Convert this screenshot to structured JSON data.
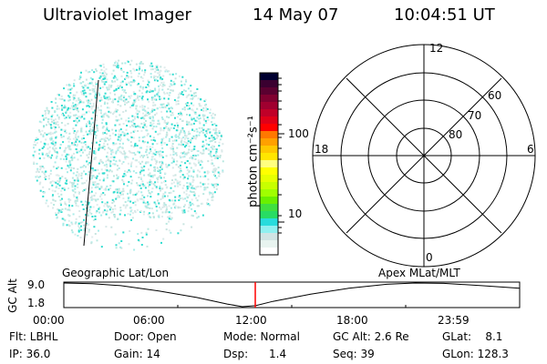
{
  "header": {
    "instrument": "Ultraviolet Imager",
    "date": "14 May 07",
    "time": "10:04:51 UT"
  },
  "colorbar": {
    "label": "photon cm⁻²s⁻¹",
    "ticks": [
      "100",
      "10"
    ],
    "colors": [
      "#000030",
      "#3a0030",
      "#5a0030",
      "#800030",
      "#a00030",
      "#c00028",
      "#e00018",
      "#ff0000",
      "#ff7800",
      "#ffa000",
      "#ffc800",
      "#ffe600",
      "#ffff80",
      "#ffff00",
      "#e6ff00",
      "#c8ff00",
      "#a0ff00",
      "#6af000",
      "#40e040",
      "#28dc64",
      "#28dcdc",
      "#90f0f0",
      "#d0e4e4",
      "#e8f4f0",
      "#ffffff"
    ]
  },
  "polar": {
    "mlt_labels": {
      "top": "12",
      "right": "6",
      "bottom": "0",
      "left": "18"
    },
    "lat_labels": [
      "60",
      "70",
      "80"
    ]
  },
  "timeline": {
    "left_label": "Geographic Lat/Lon",
    "right_label": "Apex MLat/MLT",
    "y_label": "GC Alt",
    "y_ticks": [
      "9.0",
      "1.8"
    ],
    "x_ticks": [
      "00:00",
      "06:00",
      "12:00",
      "18:00",
      "23:59"
    ],
    "current_time_hours": 10.08,
    "marker_color": "#ff0000"
  },
  "status": [
    [
      "Flt: LBHL",
      "Door: Open",
      "Mode: Normal",
      "GC Alt: 2.6 Re",
      "GLat:    8.1"
    ],
    [
      "IP: 36.0",
      "Gain: 14",
      "Dsp:      1.4",
      "Seq: 39",
      "GLon: 128.3"
    ]
  ]
}
